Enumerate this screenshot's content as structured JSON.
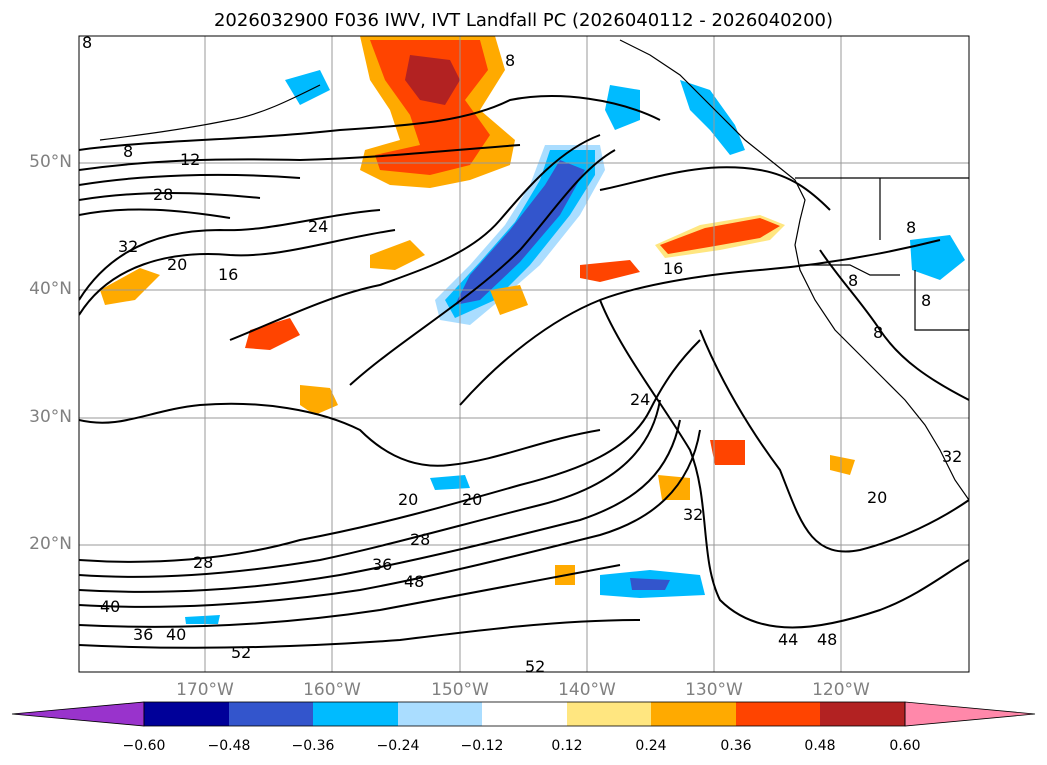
{
  "title": "2026032900 F036 IWV, IVT Landfall PC (2026040112 - 2026040200)",
  "latitude_labels": [
    "50°N",
    "40°N",
    "30°N",
    "20°N"
  ],
  "longitude_labels": [
    "170°W",
    "160°W",
    "150°W",
    "140°W",
    "130°W",
    "120°W"
  ],
  "contour_labels": [
    "8",
    "8",
    "12",
    "28",
    "24",
    "32",
    "20",
    "16",
    "16",
    "8",
    "8",
    "8",
    "24",
    "20",
    "20",
    "28",
    "36",
    "48",
    "28",
    "40",
    "36",
    "40",
    "52",
    "52",
    "32",
    "20",
    "44",
    "48",
    "8",
    "32",
    "8"
  ],
  "colorbar": {
    "ticks": [
      "−0.60",
      "−0.48",
      "−0.36",
      "−0.24",
      "−0.12",
      "0.12",
      "0.24",
      "0.36",
      "0.48",
      "0.60"
    ],
    "colors": [
      "#9933cc",
      "#000099",
      "#3355cc",
      "#00bbff",
      "#aaddff",
      "#ffffff",
      "#ffe680",
      "#ffaa00",
      "#ff4400",
      "#b22222",
      "#ff88aa"
    ]
  },
  "colors": {
    "contour": "#000000",
    "grid": "#999999",
    "coast": "#000000",
    "axis_label": "#808080"
  }
}
